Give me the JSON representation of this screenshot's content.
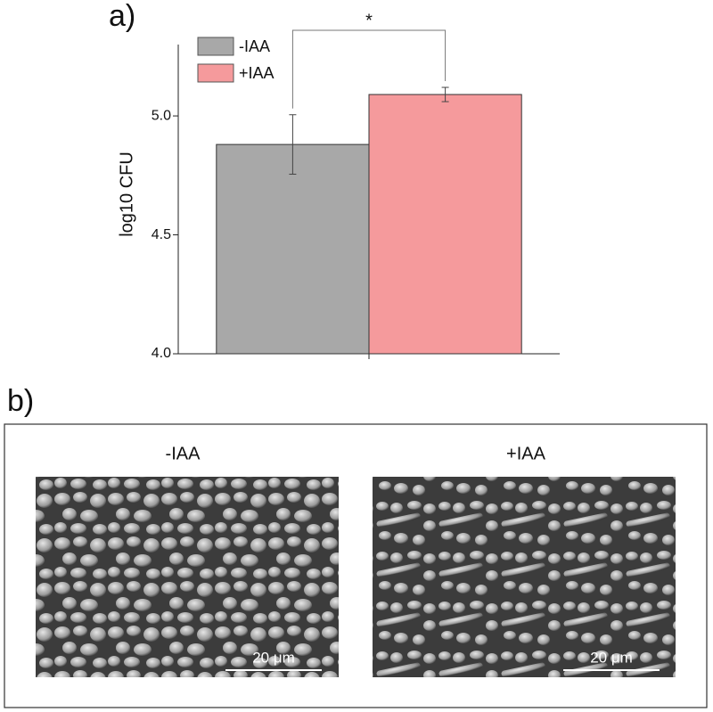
{
  "chart_data": {
    "type": "bar",
    "panel_label": "a)",
    "ylabel": "log10 CFU",
    "categories": [
      null
    ],
    "series": [
      {
        "name": "-IAA",
        "color": "#a8a8a8",
        "values": [
          4.88
        ],
        "errors": [
          0.125
        ]
      },
      {
        "name": "+IAA",
        "color": "#f59a9c",
        "values": [
          5.09
        ],
        "errors": [
          0.03
        ]
      }
    ],
    "ylim": [
      4.0,
      5.3
    ],
    "yticks": [
      {
        "value": 4.0,
        "label": "4.0"
      },
      {
        "value": 4.5,
        "label": "4.5"
      },
      {
        "value": 5.0,
        "label": "5.0"
      }
    ],
    "annotation": "*",
    "legend": "top-left"
  },
  "panel_b": {
    "label": "b)",
    "images": [
      {
        "title": "-IAA",
        "scale_bar": "20 μm"
      },
      {
        "title": "+IAA",
        "scale_bar": "20 μm"
      }
    ]
  }
}
